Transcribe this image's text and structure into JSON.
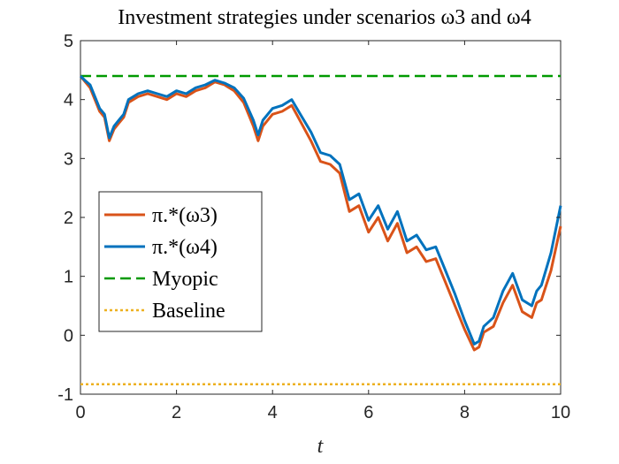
{
  "chart_data": {
    "type": "line",
    "title": "Investment strategies under scenarios ω3 and ω4",
    "xlabel": "t",
    "ylabel": "",
    "xlim": [
      0,
      10
    ],
    "ylim": [
      -1,
      5
    ],
    "xticks": [
      0,
      2,
      4,
      6,
      8,
      10
    ],
    "yticks": [
      -1,
      0,
      1,
      2,
      3,
      4,
      5
    ],
    "grid": false,
    "legend_position": "middle-left",
    "series": [
      {
        "name": "π.*(ω3)",
        "color": "#D95319",
        "style": "solid",
        "x": [
          0,
          0.1,
          0.2,
          0.3,
          0.4,
          0.5,
          0.6,
          0.7,
          0.8,
          0.9,
          1.0,
          1.2,
          1.4,
          1.6,
          1.8,
          2.0,
          2.2,
          2.4,
          2.6,
          2.8,
          3.0,
          3.2,
          3.4,
          3.6,
          3.7,
          3.8,
          4.0,
          4.2,
          4.4,
          4.6,
          4.8,
          5.0,
          5.2,
          5.4,
          5.6,
          5.8,
          6.0,
          6.2,
          6.4,
          6.6,
          6.8,
          7.0,
          7.2,
          7.4,
          7.6,
          7.8,
          8.0,
          8.2,
          8.3,
          8.4,
          8.6,
          8.8,
          9.0,
          9.2,
          9.4,
          9.5,
          9.6,
          9.8,
          10.0
        ],
        "values": [
          4.4,
          4.3,
          4.2,
          4.0,
          3.8,
          3.7,
          3.3,
          3.5,
          3.6,
          3.7,
          3.95,
          4.05,
          4.1,
          4.05,
          4.0,
          4.1,
          4.05,
          4.15,
          4.2,
          4.3,
          4.25,
          4.15,
          3.95,
          3.55,
          3.3,
          3.55,
          3.75,
          3.8,
          3.9,
          3.6,
          3.3,
          2.95,
          2.9,
          2.75,
          2.1,
          2.2,
          1.75,
          2.0,
          1.6,
          1.9,
          1.4,
          1.5,
          1.25,
          1.3,
          0.9,
          0.5,
          0.1,
          -0.25,
          -0.2,
          0.05,
          0.15,
          0.55,
          0.85,
          0.4,
          0.3,
          0.55,
          0.6,
          1.1,
          1.85
        ]
      },
      {
        "name": "π.*(ω4)",
        "color": "#0072BD",
        "style": "solid",
        "x": [
          0,
          0.1,
          0.2,
          0.3,
          0.4,
          0.5,
          0.6,
          0.7,
          0.8,
          0.9,
          1.0,
          1.2,
          1.4,
          1.6,
          1.8,
          2.0,
          2.2,
          2.4,
          2.6,
          2.8,
          3.0,
          3.2,
          3.4,
          3.6,
          3.7,
          3.8,
          4.0,
          4.2,
          4.4,
          4.6,
          4.8,
          5.0,
          5.2,
          5.4,
          5.6,
          5.8,
          6.0,
          6.2,
          6.4,
          6.6,
          6.8,
          7.0,
          7.2,
          7.4,
          7.6,
          7.8,
          8.0,
          8.2,
          8.3,
          8.4,
          8.6,
          8.8,
          9.0,
          9.2,
          9.4,
          9.5,
          9.6,
          9.8,
          10.0
        ],
        "values": [
          4.4,
          4.32,
          4.25,
          4.05,
          3.85,
          3.75,
          3.35,
          3.55,
          3.65,
          3.75,
          4.0,
          4.1,
          4.15,
          4.1,
          4.05,
          4.15,
          4.1,
          4.2,
          4.25,
          4.33,
          4.28,
          4.2,
          4.02,
          3.65,
          3.4,
          3.65,
          3.85,
          3.9,
          4.0,
          3.72,
          3.45,
          3.1,
          3.05,
          2.9,
          2.3,
          2.4,
          1.95,
          2.2,
          1.8,
          2.1,
          1.6,
          1.7,
          1.45,
          1.5,
          1.1,
          0.7,
          0.25,
          -0.15,
          -0.1,
          0.15,
          0.3,
          0.75,
          1.05,
          0.6,
          0.5,
          0.75,
          0.85,
          1.4,
          2.2
        ]
      },
      {
        "name": "Myopic",
        "color": "#009900",
        "style": "dashed",
        "x": [
          0,
          10
        ],
        "values": [
          4.4,
          4.4
        ]
      },
      {
        "name": "Baseline",
        "color": "#EDB120",
        "style": "dotted",
        "x": [
          0,
          10
        ],
        "values": [
          -0.83,
          -0.83
        ]
      }
    ]
  }
}
